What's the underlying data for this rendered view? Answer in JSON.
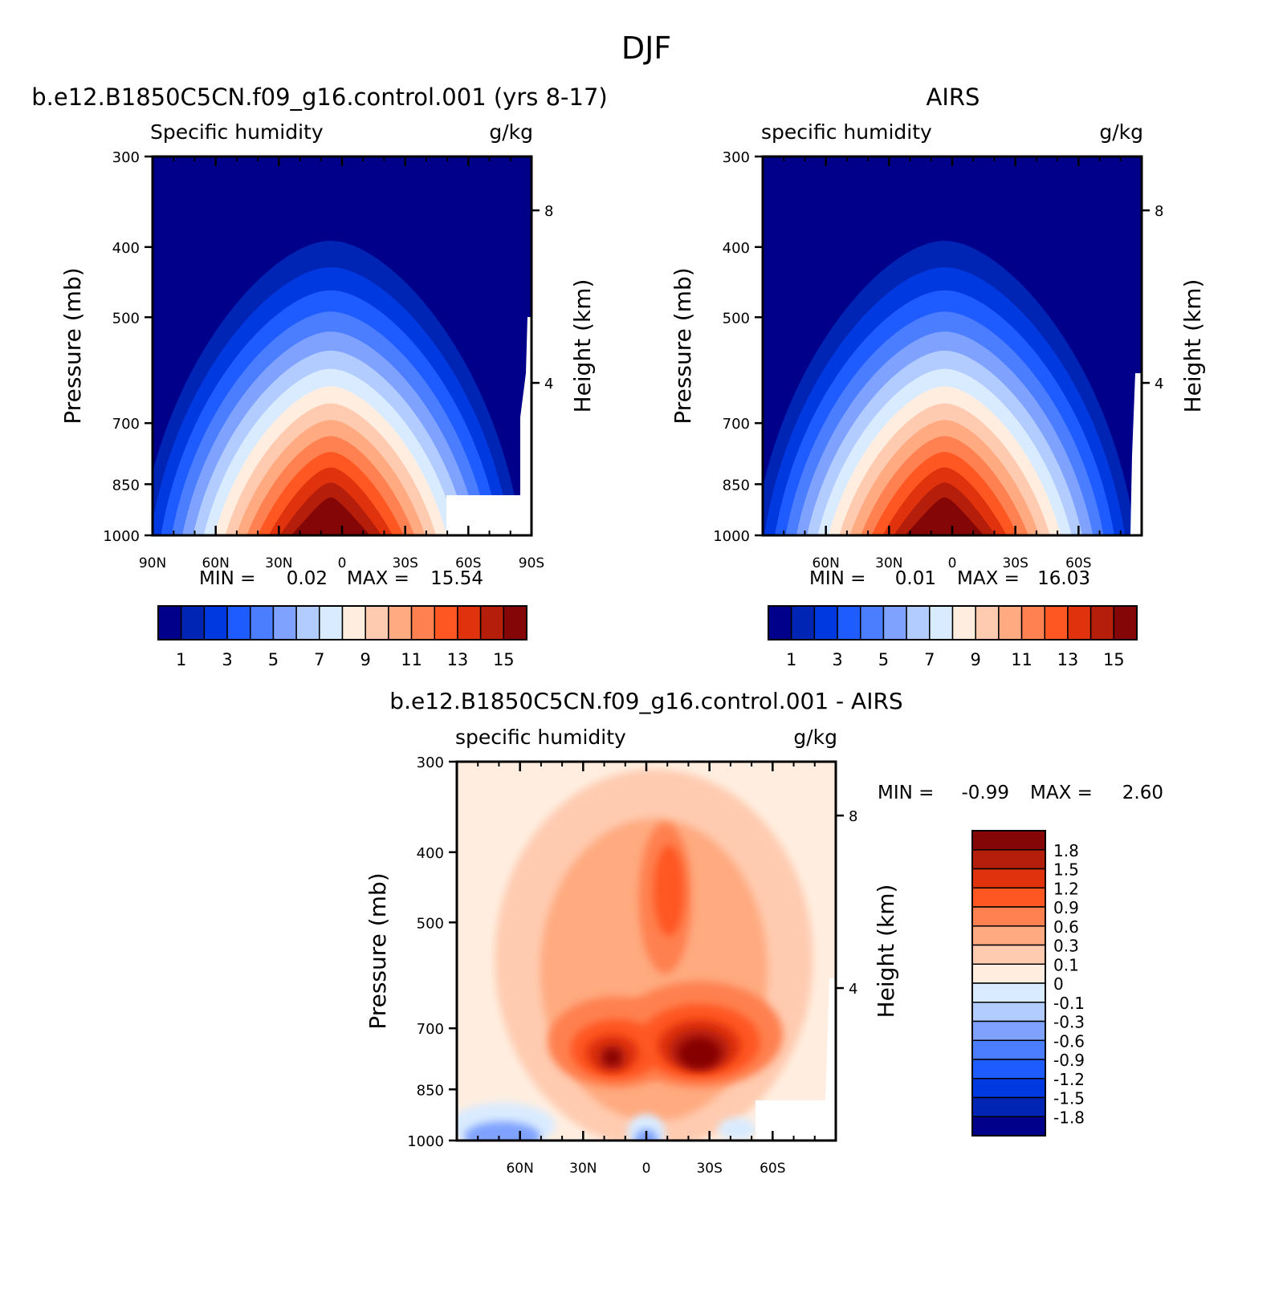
{
  "figure_title": "DJF",
  "colors": {
    "abs_scale": [
      "#00008b",
      "#0024b4",
      "#0039e0",
      "#1f5cff",
      "#4a7dff",
      "#7fa2ff",
      "#b3ccff",
      "#d9ebff",
      "#ffeee0",
      "#ffcbb0",
      "#ffaa80",
      "#ff8050",
      "#ff5722",
      "#e0320d",
      "#b51e0a",
      "#850606"
    ],
    "diff_scale": [
      "#00008b",
      "#0024b4",
      "#0039e0",
      "#1f5cff",
      "#4a7dff",
      "#7fa2ff",
      "#b3ccff",
      "#d9ebff",
      "#ffeee0",
      "#ffcbb0",
      "#ffaa80",
      "#ff8050",
      "#ff5722",
      "#e0320d",
      "#b51e0a",
      "#850606"
    ]
  },
  "chart_data": [
    {
      "id": "model",
      "type": "heatmap",
      "title": "b.e12.B1850C5CN.f09_g16.control.001 (yrs 8-17)",
      "left_label": "Specific humidity",
      "right_label": "g/kg",
      "xlabel": "",
      "ylabel": "Pressure (mb)",
      "y2label": "Height (km)",
      "x_ticks": [
        "90N",
        "60N",
        "30N",
        "0",
        "30S",
        "60S",
        "90S"
      ],
      "y_ticks": [
        "300",
        "400",
        "500",
        "700",
        "850",
        "1000"
      ],
      "y2_ticks": [
        "8",
        "4"
      ],
      "min_label": "MIN =",
      "min_value": "0.02",
      "max_label": "MAX =",
      "max_value": "15.54",
      "peak": 15.5,
      "colorbar_labels": [
        "1",
        "3",
        "5",
        "7",
        "9",
        "11",
        "13",
        "15"
      ]
    },
    {
      "id": "obs",
      "type": "heatmap",
      "title": "AIRS",
      "left_label": "specific humidity",
      "right_label": "g/kg",
      "xlabel": "",
      "ylabel": "Pressure (mb)",
      "y2label": "Height (km)",
      "x_ticks": [
        "60N",
        "30N",
        "0",
        "30S",
        "60S"
      ],
      "y_ticks": [
        "300",
        "400",
        "500",
        "700",
        "850",
        "1000"
      ],
      "y2_ticks": [
        "8",
        "4"
      ],
      "min_label": "MIN =",
      "min_value": "0.01",
      "max_label": "MAX =",
      "max_value": "16.03",
      "peak": 16.0,
      "colorbar_labels": [
        "1",
        "3",
        "5",
        "7",
        "9",
        "11",
        "13",
        "15"
      ]
    },
    {
      "id": "diff",
      "type": "heatmap",
      "title": "b.e12.B1850C5CN.f09_g16.control.001 - AIRS",
      "left_label": "specific humidity",
      "right_label": "g/kg",
      "xlabel": "",
      "ylabel": "Pressure (mb)",
      "y2label": "Height (km)",
      "x_ticks": [
        "60N",
        "30N",
        "0",
        "30S",
        "60S"
      ],
      "y_ticks": [
        "300",
        "400",
        "500",
        "700",
        "850",
        "1000"
      ],
      "y2_ticks": [
        "8",
        "4"
      ],
      "min_label": "MIN =",
      "min_value": "-0.99",
      "max_label": "MAX =",
      "max_value": "2.60",
      "colorbar_labels": [
        "1.8",
        "1.5",
        "1.2",
        "0.9",
        "0.6",
        "0.3",
        "0.1",
        "0",
        "-0.1",
        "-0.3",
        "-0.6",
        "-0.9",
        "-1.2",
        "-1.5",
        "-1.8"
      ]
    }
  ]
}
